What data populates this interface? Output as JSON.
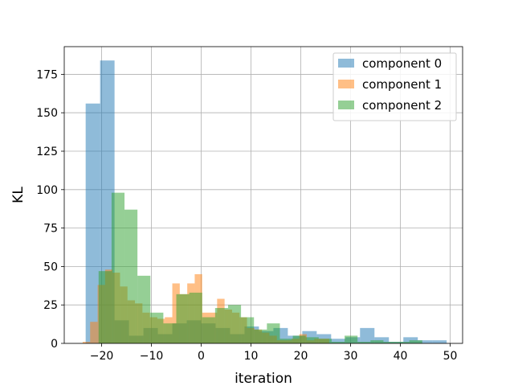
{
  "chart_data": {
    "type": "bar",
    "subtype": "overlapping-histogram",
    "title": "",
    "xlabel": "iteration",
    "ylabel": "KL",
    "xlim": [
      -27.5,
      52.5
    ],
    "ylim": [
      0,
      193
    ],
    "xticks": [
      -20,
      -10,
      0,
      10,
      20,
      30,
      40,
      50
    ],
    "xtick_labels": [
      "−20",
      "−10",
      "0",
      "10",
      "20",
      "30",
      "40",
      "50"
    ],
    "yticks": [
      0,
      25,
      50,
      75,
      100,
      125,
      150,
      175
    ],
    "ytick_labels": [
      "0",
      "25",
      "50",
      "75",
      "100",
      "125",
      "150",
      "175"
    ],
    "grid": true,
    "legend_position": "top-right",
    "bar_alpha": 0.5,
    "series": [
      {
        "name": "component 0",
        "color": "#1f77b4",
        "bins": [
          {
            "x0": -23.2,
            "x1": -20.3,
            "y": 156
          },
          {
            "x0": -20.3,
            "x1": -17.4,
            "y": 184
          },
          {
            "x0": -17.4,
            "x1": -14.5,
            "y": 15
          },
          {
            "x0": -14.5,
            "x1": -11.6,
            "y": 5
          },
          {
            "x0": -11.6,
            "x1": -8.7,
            "y": 10
          },
          {
            "x0": -8.7,
            "x1": -5.8,
            "y": 6
          },
          {
            "x0": -5.8,
            "x1": -2.9,
            "y": 13
          },
          {
            "x0": -2.9,
            "x1": 0.0,
            "y": 15
          },
          {
            "x0": 0.0,
            "x1": 2.9,
            "y": 13
          },
          {
            "x0": 2.9,
            "x1": 5.8,
            "y": 10
          },
          {
            "x0": 5.8,
            "x1": 8.7,
            "y": 6
          },
          {
            "x0": 8.7,
            "x1": 11.6,
            "y": 11
          },
          {
            "x0": 11.6,
            "x1": 14.5,
            "y": 8
          },
          {
            "x0": 14.5,
            "x1": 17.4,
            "y": 10
          },
          {
            "x0": 17.4,
            "x1": 20.3,
            "y": 5
          },
          {
            "x0": 20.3,
            "x1": 23.2,
            "y": 8
          },
          {
            "x0": 23.2,
            "x1": 26.1,
            "y": 6
          },
          {
            "x0": 26.1,
            "x1": 29.0,
            "y": 3
          },
          {
            "x0": 29.0,
            "x1": 31.9,
            "y": 4
          },
          {
            "x0": 31.9,
            "x1": 34.8,
            "y": 10
          },
          {
            "x0": 34.8,
            "x1": 37.7,
            "y": 4
          },
          {
            "x0": 37.7,
            "x1": 40.6,
            "y": 1
          },
          {
            "x0": 40.6,
            "x1": 43.5,
            "y": 4
          },
          {
            "x0": 43.5,
            "x1": 46.4,
            "y": 2
          },
          {
            "x0": 46.4,
            "x1": 49.3,
            "y": 2
          }
        ]
      },
      {
        "name": "component 1",
        "color": "#ff7f0e",
        "bins": [
          {
            "x0": -23.8,
            "x1": -22.3,
            "y": 1
          },
          {
            "x0": -22.3,
            "x1": -20.8,
            "y": 14
          },
          {
            "x0": -20.8,
            "x1": -19.3,
            "y": 38
          },
          {
            "x0": -19.3,
            "x1": -17.8,
            "y": 48
          },
          {
            "x0": -17.8,
            "x1": -16.3,
            "y": 46
          },
          {
            "x0": -16.3,
            "x1": -14.8,
            "y": 37
          },
          {
            "x0": -14.8,
            "x1": -13.3,
            "y": 28
          },
          {
            "x0": -13.3,
            "x1": -11.8,
            "y": 26
          },
          {
            "x0": -11.8,
            "x1": -10.3,
            "y": 20
          },
          {
            "x0": -10.3,
            "x1": -8.8,
            "y": 17
          },
          {
            "x0": -8.8,
            "x1": -7.3,
            "y": 16
          },
          {
            "x0": -7.3,
            "x1": -5.8,
            "y": 17
          },
          {
            "x0": -5.8,
            "x1": -4.3,
            "y": 39
          },
          {
            "x0": -4.3,
            "x1": -2.8,
            "y": 32
          },
          {
            "x0": -2.8,
            "x1": -1.3,
            "y": 39
          },
          {
            "x0": -1.3,
            "x1": 0.2,
            "y": 45
          },
          {
            "x0": 0.2,
            "x1": 1.7,
            "y": 20
          },
          {
            "x0": 1.7,
            "x1": 3.2,
            "y": 20
          },
          {
            "x0": 3.2,
            "x1": 4.7,
            "y": 29
          },
          {
            "x0": 4.7,
            "x1": 6.2,
            "y": 22
          },
          {
            "x0": 6.2,
            "x1": 7.7,
            "y": 20
          },
          {
            "x0": 7.7,
            "x1": 9.2,
            "y": 17
          },
          {
            "x0": 9.2,
            "x1": 10.7,
            "y": 10
          },
          {
            "x0": 10.7,
            "x1": 12.2,
            "y": 9
          },
          {
            "x0": 12.2,
            "x1": 13.7,
            "y": 7
          },
          {
            "x0": 13.7,
            "x1": 15.2,
            "y": 5
          },
          {
            "x0": 15.2,
            "x1": 16.7,
            "y": 2
          },
          {
            "x0": 16.7,
            "x1": 18.2,
            "y": 2
          },
          {
            "x0": 18.2,
            "x1": 19.7,
            "y": 3
          },
          {
            "x0": 19.7,
            "x1": 21.2,
            "y": 6
          },
          {
            "x0": 21.2,
            "x1": 22.7,
            "y": 2
          },
          {
            "x0": 22.7,
            "x1": 24.2,
            "y": 3
          },
          {
            "x0": 24.2,
            "x1": 25.7,
            "y": 3
          }
        ]
      },
      {
        "name": "component 2",
        "color": "#2ca02c",
        "bins": [
          {
            "x0": -20.6,
            "x1": -18.0,
            "y": 47
          },
          {
            "x0": -18.0,
            "x1": -15.4,
            "y": 98
          },
          {
            "x0": -15.4,
            "x1": -12.8,
            "y": 87
          },
          {
            "x0": -12.8,
            "x1": -10.2,
            "y": 44
          },
          {
            "x0": -10.2,
            "x1": -7.6,
            "y": 20
          },
          {
            "x0": -7.6,
            "x1": -5.0,
            "y": 13
          },
          {
            "x0": -5.0,
            "x1": -2.4,
            "y": 32
          },
          {
            "x0": -2.4,
            "x1": 0.2,
            "y": 33
          },
          {
            "x0": 0.2,
            "x1": 2.8,
            "y": 17
          },
          {
            "x0": 2.8,
            "x1": 5.4,
            "y": 23
          },
          {
            "x0": 5.4,
            "x1": 8.0,
            "y": 25
          },
          {
            "x0": 8.0,
            "x1": 10.6,
            "y": 17
          },
          {
            "x0": 10.6,
            "x1": 13.2,
            "y": 9
          },
          {
            "x0": 13.2,
            "x1": 15.8,
            "y": 13
          },
          {
            "x0": 15.8,
            "x1": 18.4,
            "y": 3
          },
          {
            "x0": 18.4,
            "x1": 21.0,
            "y": 5
          },
          {
            "x0": 21.0,
            "x1": 23.6,
            "y": 4
          },
          {
            "x0": 23.6,
            "x1": 26.2,
            "y": 3
          },
          {
            "x0": 26.2,
            "x1": 28.8,
            "y": 1
          },
          {
            "x0": 28.8,
            "x1": 31.4,
            "y": 5
          },
          {
            "x0": 31.4,
            "x1": 34.0,
            "y": 1
          },
          {
            "x0": 34.0,
            "x1": 36.6,
            "y": 2
          },
          {
            "x0": 36.6,
            "x1": 39.2,
            "y": 1
          },
          {
            "x0": 39.2,
            "x1": 41.8,
            "y": 1
          },
          {
            "x0": 41.8,
            "x1": 44.4,
            "y": 2
          }
        ]
      }
    ]
  }
}
